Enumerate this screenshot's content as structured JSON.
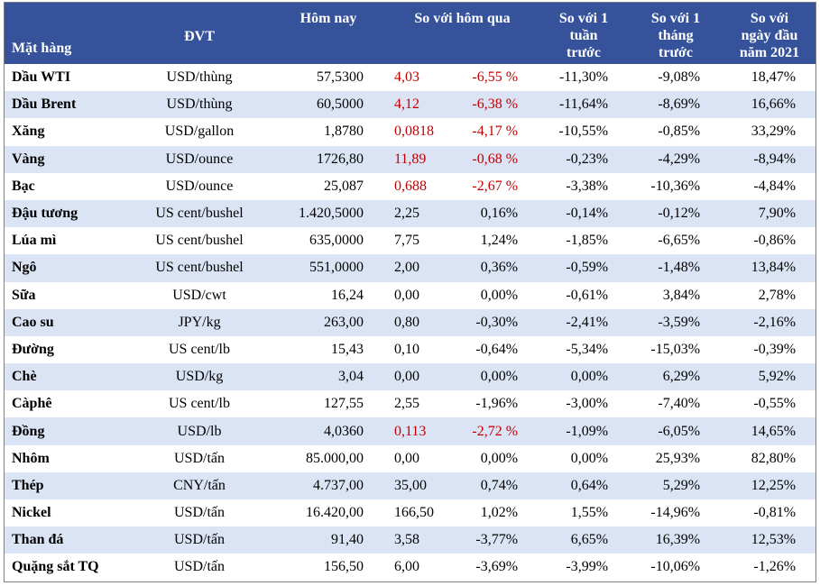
{
  "header": {
    "item": "Mặt hàng",
    "unit": "ĐVT",
    "today": "Hôm nay",
    "vs_yesterday": "So với hôm qua",
    "vs_week": [
      "So với 1",
      "tuần",
      "trước"
    ],
    "vs_month": [
      "So với 1",
      "tháng",
      "trước"
    ],
    "vs_year_start": [
      "So với",
      "ngày đầu",
      "năm 2021"
    ]
  },
  "colors": {
    "header_bg": "#35529b",
    "stripe": "#dbe4f4",
    "negative": "#c00000"
  },
  "rows": [
    {
      "name": "Dầu WTI",
      "unit": "USD/thùng",
      "price": "57,5300",
      "chg": "4,03",
      "pct": "-6,55 %",
      "week": "-11,30%",
      "month": "-9,08%",
      "ytd": "18,47%",
      "red": true
    },
    {
      "name": "Dầu Brent",
      "unit": "USD/thùng",
      "price": "60,5000",
      "chg": "4,12",
      "pct": "-6,38 %",
      "week": "-11,64%",
      "month": "-8,69%",
      "ytd": "16,66%",
      "red": true
    },
    {
      "name": "Xăng",
      "unit": "USD/gallon",
      "price": "1,8780",
      "chg": "0,0818",
      "pct": "-4,17 %",
      "week": "-10,55%",
      "month": "-0,85%",
      "ytd": "33,29%",
      "red": true
    },
    {
      "name": "Vàng",
      "unit": "USD/ounce",
      "price": "1726,80",
      "chg": "11,89",
      "pct": "-0,68 %",
      "week": "-0,23%",
      "month": "-4,29%",
      "ytd": "-8,94%",
      "red": true
    },
    {
      "name": "Bạc",
      "unit": "USD/ounce",
      "price": "25,087",
      "chg": "0,688",
      "pct": "-2,67 %",
      "week": "-3,38%",
      "month": "-10,36%",
      "ytd": "-4,84%",
      "red": true
    },
    {
      "name": "Đậu tương",
      "unit": "US cent/bushel",
      "price": "1.420,5000",
      "chg": "2,25",
      "pct": "0,16%",
      "week": "-0,14%",
      "month": "-0,12%",
      "ytd": "7,90%",
      "red": false
    },
    {
      "name": "Lúa mì",
      "unit": "US cent/bushel",
      "price": "635,0000",
      "chg": "7,75",
      "pct": "1,24%",
      "week": "-1,85%",
      "month": "-6,65%",
      "ytd": "-0,86%",
      "red": false
    },
    {
      "name": "Ngô",
      "unit": "US cent/bushel",
      "price": "551,0000",
      "chg": "2,00",
      "pct": "0,36%",
      "week": "-0,59%",
      "month": "-1,48%",
      "ytd": "13,84%",
      "red": false
    },
    {
      "name": "Sữa",
      "unit": "USD/cwt",
      "price": "16,24",
      "chg": "0,00",
      "pct": "0,00%",
      "week": "-0,61%",
      "month": "3,84%",
      "ytd": "2,78%",
      "red": false
    },
    {
      "name": "Cao su",
      "unit": "JPY/kg",
      "price": "263,00",
      "chg": "0,80",
      "pct": "-0,30%",
      "week": "-2,41%",
      "month": "-3,59%",
      "ytd": "-2,16%",
      "red": false
    },
    {
      "name": "Đường",
      "unit": "US cent/lb",
      "price": "15,43",
      "chg": "0,10",
      "pct": "-0,64%",
      "week": "-5,34%",
      "month": "-15,03%",
      "ytd": "-0,39%",
      "red": false
    },
    {
      "name": "Chè",
      "unit": "USD/kg",
      "price": "3,04",
      "chg": "0,00",
      "pct": "0,00%",
      "week": "0,00%",
      "month": "6,29%",
      "ytd": "5,92%",
      "red": false
    },
    {
      "name": "Càphê",
      "unit": "US cent/lb",
      "price": "127,55",
      "chg": "2,55",
      "pct": "-1,96%",
      "week": "-3,00%",
      "month": "-7,40%",
      "ytd": "-0,55%",
      "red": false
    },
    {
      "name": "Đồng",
      "unit": "USD/lb",
      "price": "4,0360",
      "chg": "0,113",
      "pct": "-2,72 %",
      "week": "-1,09%",
      "month": "-6,05%",
      "ytd": "14,65%",
      "red": true
    },
    {
      "name": "Nhôm",
      "unit": "USD/tấn",
      "price": "85.000,00",
      "chg": "0,00",
      "pct": "0,00%",
      "week": "0,00%",
      "month": "25,93%",
      "ytd": "82,80%",
      "red": false
    },
    {
      "name": "Thép",
      "unit": "CNY/tấn",
      "price": "4.737,00",
      "chg": "35,00",
      "pct": "0,74%",
      "week": "0,64%",
      "month": "5,29%",
      "ytd": "12,25%",
      "red": false
    },
    {
      "name": "Nickel",
      "unit": "USD/tấn",
      "price": "16.420,00",
      "chg": "166,50",
      "pct": "1,02%",
      "week": "1,55%",
      "month": "-14,96%",
      "ytd": "-0,81%",
      "red": false
    },
    {
      "name": "Than đá",
      "unit": "USD/tấn",
      "price": "91,40",
      "chg": "3,58",
      "pct": "-3,77%",
      "week": "6,65%",
      "month": "16,39%",
      "ytd": "12,53%",
      "red": false
    },
    {
      "name": "Quặng sắt TQ",
      "unit": "USD/tấn",
      "price": "156,50",
      "chg": "6,00",
      "pct": "-3,69%",
      "week": "-3,99%",
      "month": "-10,06%",
      "ytd": "-1,26%",
      "red": false
    }
  ]
}
